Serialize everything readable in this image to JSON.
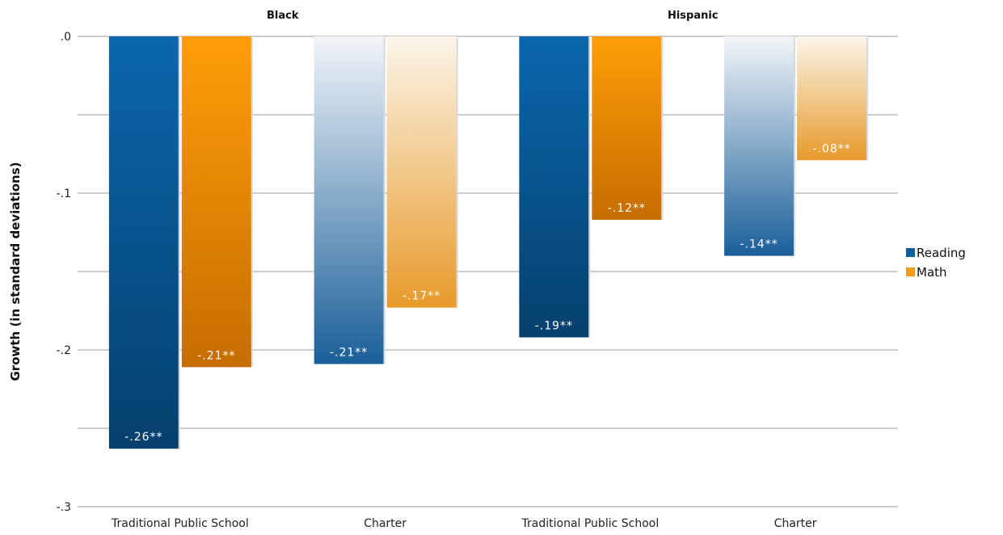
{
  "chart_data": {
    "type": "bar",
    "ylabel": "Growth (in standard deviations)",
    "ylim": [
      -0.3,
      0
    ],
    "yticks": [
      {
        "value": 0,
        "label": ".0"
      },
      {
        "value": -0.1,
        "label": "-.1"
      },
      {
        "value": -0.2,
        "label": "-.2"
      },
      {
        "value": -0.3,
        "label": "-.3"
      }
    ],
    "minor_grid": [
      -0.05,
      -0.15,
      -0.25
    ],
    "groups": [
      {
        "name": "Black",
        "categories": [
          "Traditional Public School",
          "Charter"
        ]
      },
      {
        "name": "Hispanic",
        "categories": [
          "Traditional Public School",
          "Charter"
        ]
      }
    ],
    "categories": [
      "Traditional Public School",
      "Charter",
      "Traditional Public School",
      "Charter"
    ],
    "series": [
      {
        "name": "Reading",
        "color": "#0a5fa0",
        "values": [
          -0.263,
          -0.209,
          -0.192,
          -0.14
        ],
        "labels": [
          "-.26**",
          "-.21**",
          "-.19**",
          "-.14**"
        ]
      },
      {
        "name": "Math",
        "color": "#f39c12",
        "values": [
          -0.211,
          -0.173,
          -0.117,
          -0.079
        ],
        "labels": [
          "-.21**",
          "-.17**",
          "-.12**",
          "-.08**"
        ]
      }
    ],
    "bar_styles": [
      "solid",
      "gradient",
      "solid",
      "gradient"
    ],
    "legend_position": "right",
    "grid": true
  }
}
